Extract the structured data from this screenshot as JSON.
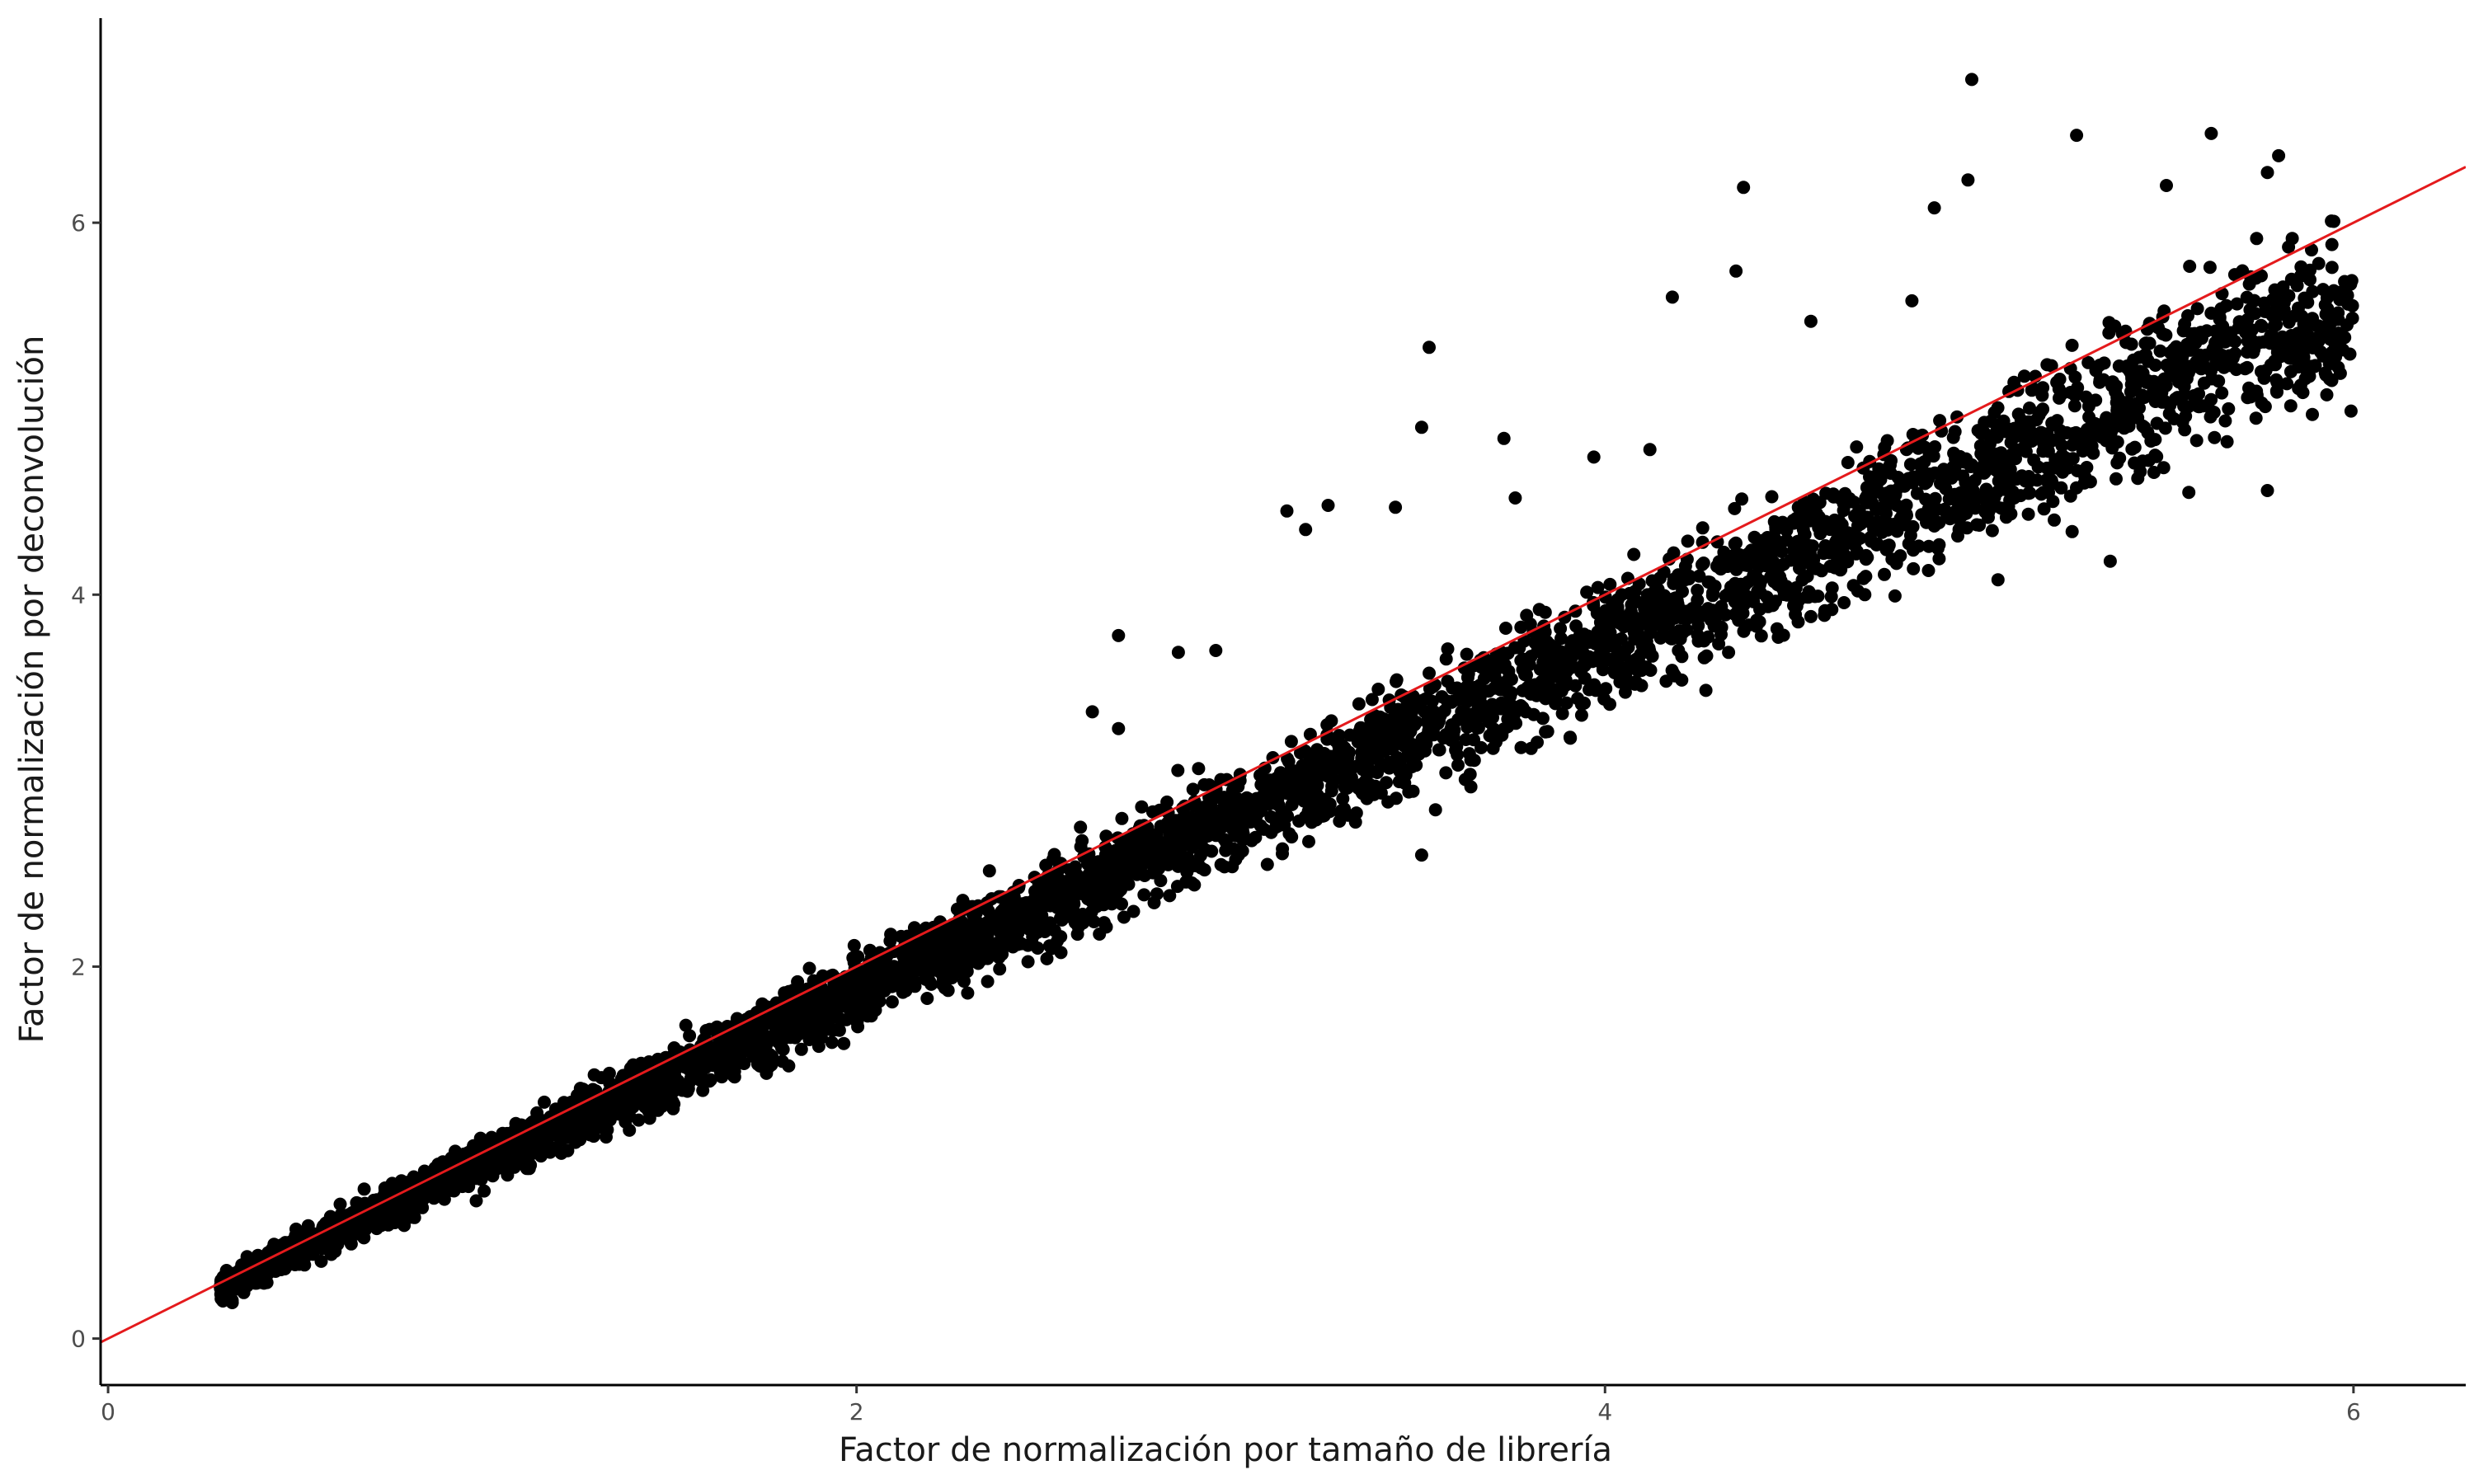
{
  "chart_data": {
    "type": "scatter",
    "title": "",
    "xlabel": "Factor de normalización por tamaño de librería",
    "ylabel": "Factor de normalización por deconvolución",
    "xlim": [
      -0.02,
      6.3
    ],
    "ylim": [
      -0.25,
      7.1
    ],
    "x_ticks": [
      0,
      2,
      4,
      6
    ],
    "y_ticks": [
      0,
      2,
      4,
      6
    ],
    "x_tick_labels": [
      "0",
      "2",
      "4",
      "6"
    ],
    "y_tick_labels": [
      "0",
      "2",
      "4",
      "6"
    ],
    "grid": false,
    "legend": "none",
    "point_color": "#000000",
    "reference_line": {
      "slope": 1,
      "intercept": 0,
      "color": "#e41a1c"
    },
    "series": [
      {
        "points_dense_band": [
          [
            0.3,
            0.28
          ],
          [
            0.5,
            0.47
          ],
          [
            0.75,
            0.72
          ],
          [
            1.0,
            0.95
          ],
          [
            1.25,
            1.18
          ],
          [
            1.5,
            1.42
          ],
          [
            1.75,
            1.64
          ],
          [
            2.0,
            1.87
          ],
          [
            2.25,
            2.1
          ],
          [
            2.5,
            2.33
          ],
          [
            2.75,
            2.57
          ],
          [
            3.0,
            2.8
          ],
          [
            3.25,
            3.03
          ],
          [
            3.5,
            3.26
          ],
          [
            3.75,
            3.5
          ],
          [
            4.0,
            3.73
          ],
          [
            4.25,
            3.97
          ],
          [
            4.5,
            4.2
          ],
          [
            4.75,
            4.45
          ],
          [
            5.0,
            4.68
          ],
          [
            5.25,
            4.93
          ],
          [
            5.5,
            5.16
          ],
          [
            5.75,
            5.38
          ],
          [
            6.0,
            5.5
          ]
        ],
        "points_outliers": [
          [
            4.98,
            6.77
          ],
          [
            5.26,
            6.47
          ],
          [
            5.62,
            6.48
          ],
          [
            4.97,
            6.23
          ],
          [
            4.37,
            6.19
          ],
          [
            5.8,
            6.36
          ],
          [
            4.88,
            6.08
          ],
          [
            5.5,
            6.2
          ],
          [
            5.77,
            6.27
          ],
          [
            4.18,
            5.6
          ],
          [
            4.35,
            5.74
          ],
          [
            3.53,
            5.33
          ],
          [
            3.73,
            4.84
          ],
          [
            3.51,
            4.9
          ],
          [
            3.26,
            4.48
          ],
          [
            3.44,
            4.47
          ],
          [
            3.15,
            4.45
          ],
          [
            3.2,
            4.35
          ],
          [
            2.7,
            3.78
          ],
          [
            2.86,
            3.69
          ],
          [
            2.96,
            3.7
          ],
          [
            2.63,
            3.37
          ],
          [
            2.7,
            3.28
          ],
          [
            3.51,
            2.6
          ],
          [
            5.77,
            4.56
          ],
          [
            5.56,
            4.55
          ],
          [
            5.05,
            4.08
          ],
          [
            5.35,
            4.18
          ],
          [
            5.47,
            4.75
          ],
          [
            3.76,
            4.52
          ],
          [
            3.97,
            4.74
          ],
          [
            4.12,
            4.78
          ],
          [
            4.55,
            5.47
          ],
          [
            4.82,
            5.58
          ]
        ]
      }
    ]
  }
}
